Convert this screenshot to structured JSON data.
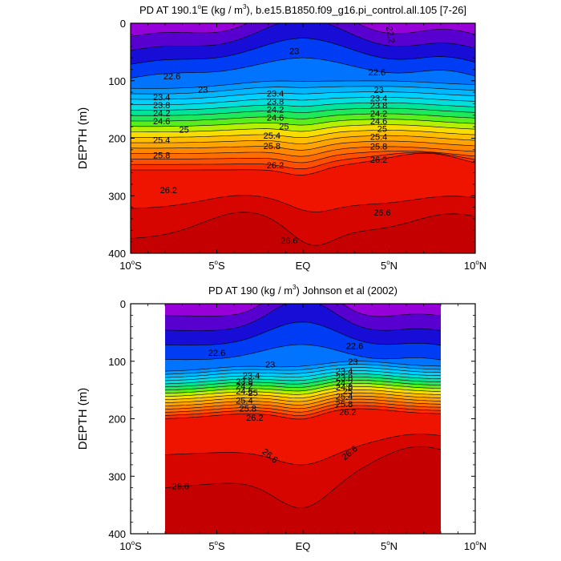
{
  "chart_data": [
    {
      "type": "contour",
      "title_parts": [
        "PD AT 190.1",
        "o",
        "E (kg / m",
        "3",
        "), b.e15.B1850.f09_g16.pi_control.all.105 [7-26]"
      ],
      "xlabel": "",
      "ylabel": "DEPTH (m)",
      "x_ticks": [
        {
          "value": -10,
          "num": "10",
          "deg": "o",
          "hem": "S"
        },
        {
          "value": -5,
          "num": "5",
          "deg": "o",
          "hem": "S"
        },
        {
          "value": 0,
          "num": "EQ",
          "deg": "",
          "hem": ""
        },
        {
          "value": 5,
          "num": "5",
          "deg": "o",
          "hem": "N"
        },
        {
          "value": 10,
          "num": "10",
          "deg": "o",
          "hem": "N"
        }
      ],
      "y_ticks": [
        "0",
        "100",
        "200",
        "300",
        "400"
      ],
      "xlim": [
        -10,
        10
      ],
      "ylim": [
        0,
        400
      ],
      "data_xlim": [
        -10,
        10
      ],
      "levels": [
        22.2,
        22.4,
        22.6,
        22.8,
        23.0,
        23.2,
        23.4,
        23.6,
        23.8,
        24.0,
        24.2,
        24.4,
        24.6,
        24.8,
        25.0,
        25.2,
        25.4,
        25.6,
        25.8,
        26.0,
        26.2,
        26.4,
        26.6
      ],
      "labels": [
        {
          "text": "22.2",
          "x": 5.1,
          "y": 20,
          "rot": 80
        },
        {
          "text": "23",
          "x": -0.5,
          "y": 48
        },
        {
          "text": "22.6",
          "x": -7.6,
          "y": 92
        },
        {
          "text": "22.6",
          "x": 4.3,
          "y": 85
        },
        {
          "text": "23",
          "x": -5.8,
          "y": 115
        },
        {
          "text": "23",
          "x": 4.4,
          "y": 116
        },
        {
          "text": "23.4",
          "x": -8.2,
          "y": 128
        },
        {
          "text": "23.4",
          "x": -1.6,
          "y": 122
        },
        {
          "text": "23.4",
          "x": 4.4,
          "y": 130
        },
        {
          "text": "23.8",
          "x": -8.2,
          "y": 142
        },
        {
          "text": "23.8",
          "x": -1.6,
          "y": 136
        },
        {
          "text": "23.8",
          "x": 4.4,
          "y": 143
        },
        {
          "text": "24.2",
          "x": -8.2,
          "y": 156
        },
        {
          "text": "24.2",
          "x": -1.6,
          "y": 150
        },
        {
          "text": "24.2",
          "x": 4.4,
          "y": 157
        },
        {
          "text": "24.6",
          "x": -8.2,
          "y": 170
        },
        {
          "text": "24.6",
          "x": -1.6,
          "y": 164
        },
        {
          "text": "24.6",
          "x": 4.4,
          "y": 170
        },
        {
          "text": "25",
          "x": -6.9,
          "y": 185
        },
        {
          "text": "25",
          "x": -1.1,
          "y": 179
        },
        {
          "text": "25",
          "x": 4.6,
          "y": 183
        },
        {
          "text": "25.4",
          "x": -8.2,
          "y": 203
        },
        {
          "text": "25.4",
          "x": -1.8,
          "y": 195
        },
        {
          "text": "25.4",
          "x": 4.4,
          "y": 197
        },
        {
          "text": "25.8",
          "x": -8.2,
          "y": 229
        },
        {
          "text": "25.8",
          "x": -1.8,
          "y": 213
        },
        {
          "text": "25.8",
          "x": 4.4,
          "y": 214
        },
        {
          "text": "26.2",
          "x": -7.8,
          "y": 290
        },
        {
          "text": "26.2",
          "x": -1.6,
          "y": 247
        },
        {
          "text": "26.2",
          "x": 4.4,
          "y": 237
        },
        {
          "text": "26.6",
          "x": 4.6,
          "y": 329
        },
        {
          "text": "26.6",
          "x": -0.8,
          "y": 378
        }
      ]
    },
    {
      "type": "contour",
      "title_parts": [
        "PD AT 190 (kg / m",
        "3",
        ") Johnson et al (2002)"
      ],
      "xlabel": "",
      "ylabel": "DEPTH (m)",
      "x_ticks": [
        {
          "value": -10,
          "num": "10",
          "deg": "o",
          "hem": "S"
        },
        {
          "value": -5,
          "num": "5",
          "deg": "o",
          "hem": "S"
        },
        {
          "value": 0,
          "num": "EQ",
          "deg": "",
          "hem": ""
        },
        {
          "value": 5,
          "num": "5",
          "deg": "o",
          "hem": "N"
        },
        {
          "value": 10,
          "num": "10",
          "deg": "o",
          "hem": "N"
        }
      ],
      "y_ticks": [
        "0",
        "100",
        "200",
        "300",
        "400"
      ],
      "xlim": [
        -10,
        10
      ],
      "ylim": [
        0,
        400
      ],
      "data_xlim": [
        -8,
        8
      ],
      "levels": [
        22.2,
        22.4,
        22.6,
        22.8,
        23.0,
        23.2,
        23.4,
        23.6,
        23.8,
        24.0,
        24.2,
        24.4,
        24.6,
        24.8,
        25.0,
        25.2,
        25.4,
        25.6,
        25.8,
        26.0,
        26.2,
        26.4,
        26.6
      ],
      "labels": [
        {
          "text": "22.6",
          "x": -5.0,
          "y": 85
        },
        {
          "text": "22.6",
          "x": 3.0,
          "y": 73
        },
        {
          "text": "23",
          "x": -1.9,
          "y": 105
        },
        {
          "text": "23",
          "x": 2.9,
          "y": 100
        },
        {
          "text": "23.4",
          "x": -3.0,
          "y": 125
        },
        {
          "text": "23.4",
          "x": 2.4,
          "y": 117
        },
        {
          "text": "23.8",
          "x": -3.4,
          "y": 135
        },
        {
          "text": "23.8",
          "x": 2.4,
          "y": 128
        },
        {
          "text": "24.2",
          "x": -3.4,
          "y": 143
        },
        {
          "text": "24.2",
          "x": 2.4,
          "y": 137
        },
        {
          "text": "24.6",
          "x": -3.4,
          "y": 152
        },
        {
          "text": "24.6",
          "x": 2.4,
          "y": 145
        },
        {
          "text": "25",
          "x": -2.9,
          "y": 155
        },
        {
          "text": "25",
          "x": 2.6,
          "y": 152
        },
        {
          "text": "25.4",
          "x": -3.4,
          "y": 168
        },
        {
          "text": "25.4",
          "x": 2.4,
          "y": 161
        },
        {
          "text": "25.8",
          "x": -3.2,
          "y": 182
        },
        {
          "text": "25.8",
          "x": 2.4,
          "y": 174
        },
        {
          "text": "26.2",
          "x": -2.8,
          "y": 198
        },
        {
          "text": "26.2",
          "x": 2.6,
          "y": 188
        },
        {
          "text": "26.6",
          "x": -1.9,
          "y": 264,
          "rot": 40
        },
        {
          "text": "26.6",
          "x": 2.7,
          "y": 259,
          "rot": -40
        },
        {
          "text": "26.6",
          "x": -7.1,
          "y": 317
        }
      ]
    }
  ]
}
